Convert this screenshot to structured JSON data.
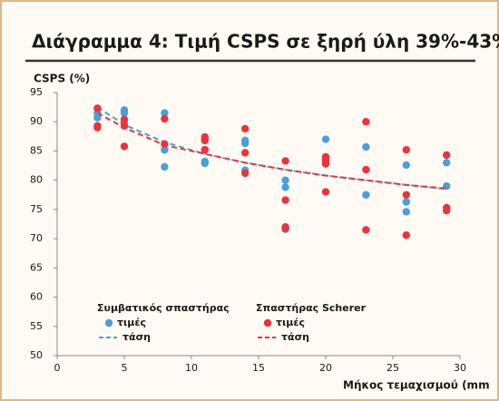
{
  "chart_data": {
    "type": "scatter",
    "title": "Διάγραμμα 4: Τιμή CSPS σε ξηρή ύλη 39%-43%",
    "y_label": "CSPS (%)",
    "x_label": "Μήκος τεμαχισμού (mm",
    "xlim": [
      0,
      30
    ],
    "xticks": [
      0,
      5,
      10,
      15,
      20,
      25,
      30
    ],
    "ylim": [
      50,
      95
    ],
    "yticks": [
      50,
      55,
      60,
      65,
      70,
      75,
      80,
      85,
      90,
      95
    ],
    "grid": false,
    "series": [
      {
        "name": "Συμβατικός σπαστήρας",
        "color": "#4a9fd8",
        "points_label": "τιμές",
        "trend_label": "τάση",
        "x": [
          3,
          3,
          3,
          5,
          5,
          5,
          8,
          8,
          8,
          11,
          11,
          11,
          14,
          14,
          14,
          17,
          17,
          17,
          20,
          20,
          20,
          23,
          23,
          26,
          26,
          26,
          29,
          29
        ],
        "values": [
          92.3,
          91.5,
          90.7,
          92,
          91.5,
          89.8,
          91.5,
          85.2,
          82.3,
          85.2,
          83.2,
          82.9,
          86.8,
          86.3,
          81.7,
          80,
          78.8,
          71.6,
          87,
          84,
          83.3,
          85.7,
          77.5,
          82.6,
          76.3,
          74.6,
          83,
          79
        ],
        "trend_x": [
          3,
          5,
          8,
          11,
          14,
          17,
          20,
          23,
          26,
          29
        ],
        "trend_values": [
          92.5,
          89.5,
          86.5,
          84.5,
          83,
          81.8,
          80.8,
          80,
          79.2,
          78.5
        ]
      },
      {
        "name": "Σπαστήρας Scherer",
        "color": "#e8343c",
        "points_label": "τιμές",
        "trend_label": "τάση",
        "x": [
          3,
          3,
          3,
          5,
          5,
          5,
          8,
          8,
          11,
          11,
          11,
          11,
          14,
          14,
          14,
          17,
          17,
          17,
          17,
          20,
          20,
          20,
          20,
          23,
          23,
          23,
          26,
          26,
          26,
          29,
          29,
          29
        ],
        "values": [
          89.3,
          89,
          92.3,
          90.4,
          89.3,
          85.8,
          90.5,
          86.2,
          87.4,
          87,
          86.8,
          85.2,
          88.8,
          84.7,
          81.2,
          83.3,
          76.6,
          72,
          71.8,
          84,
          83.5,
          82.8,
          78,
          90,
          81.8,
          71.5,
          85.2,
          77.5,
          70.6,
          84.3,
          75.3,
          74.8
        ],
        "trend_x": [
          3,
          5,
          8,
          11,
          14,
          17,
          20,
          23,
          26,
          29
        ],
        "trend_values": [
          91.5,
          89,
          86,
          84.5,
          83,
          81.8,
          80.8,
          80,
          79.2,
          78.6
        ]
      }
    ]
  }
}
